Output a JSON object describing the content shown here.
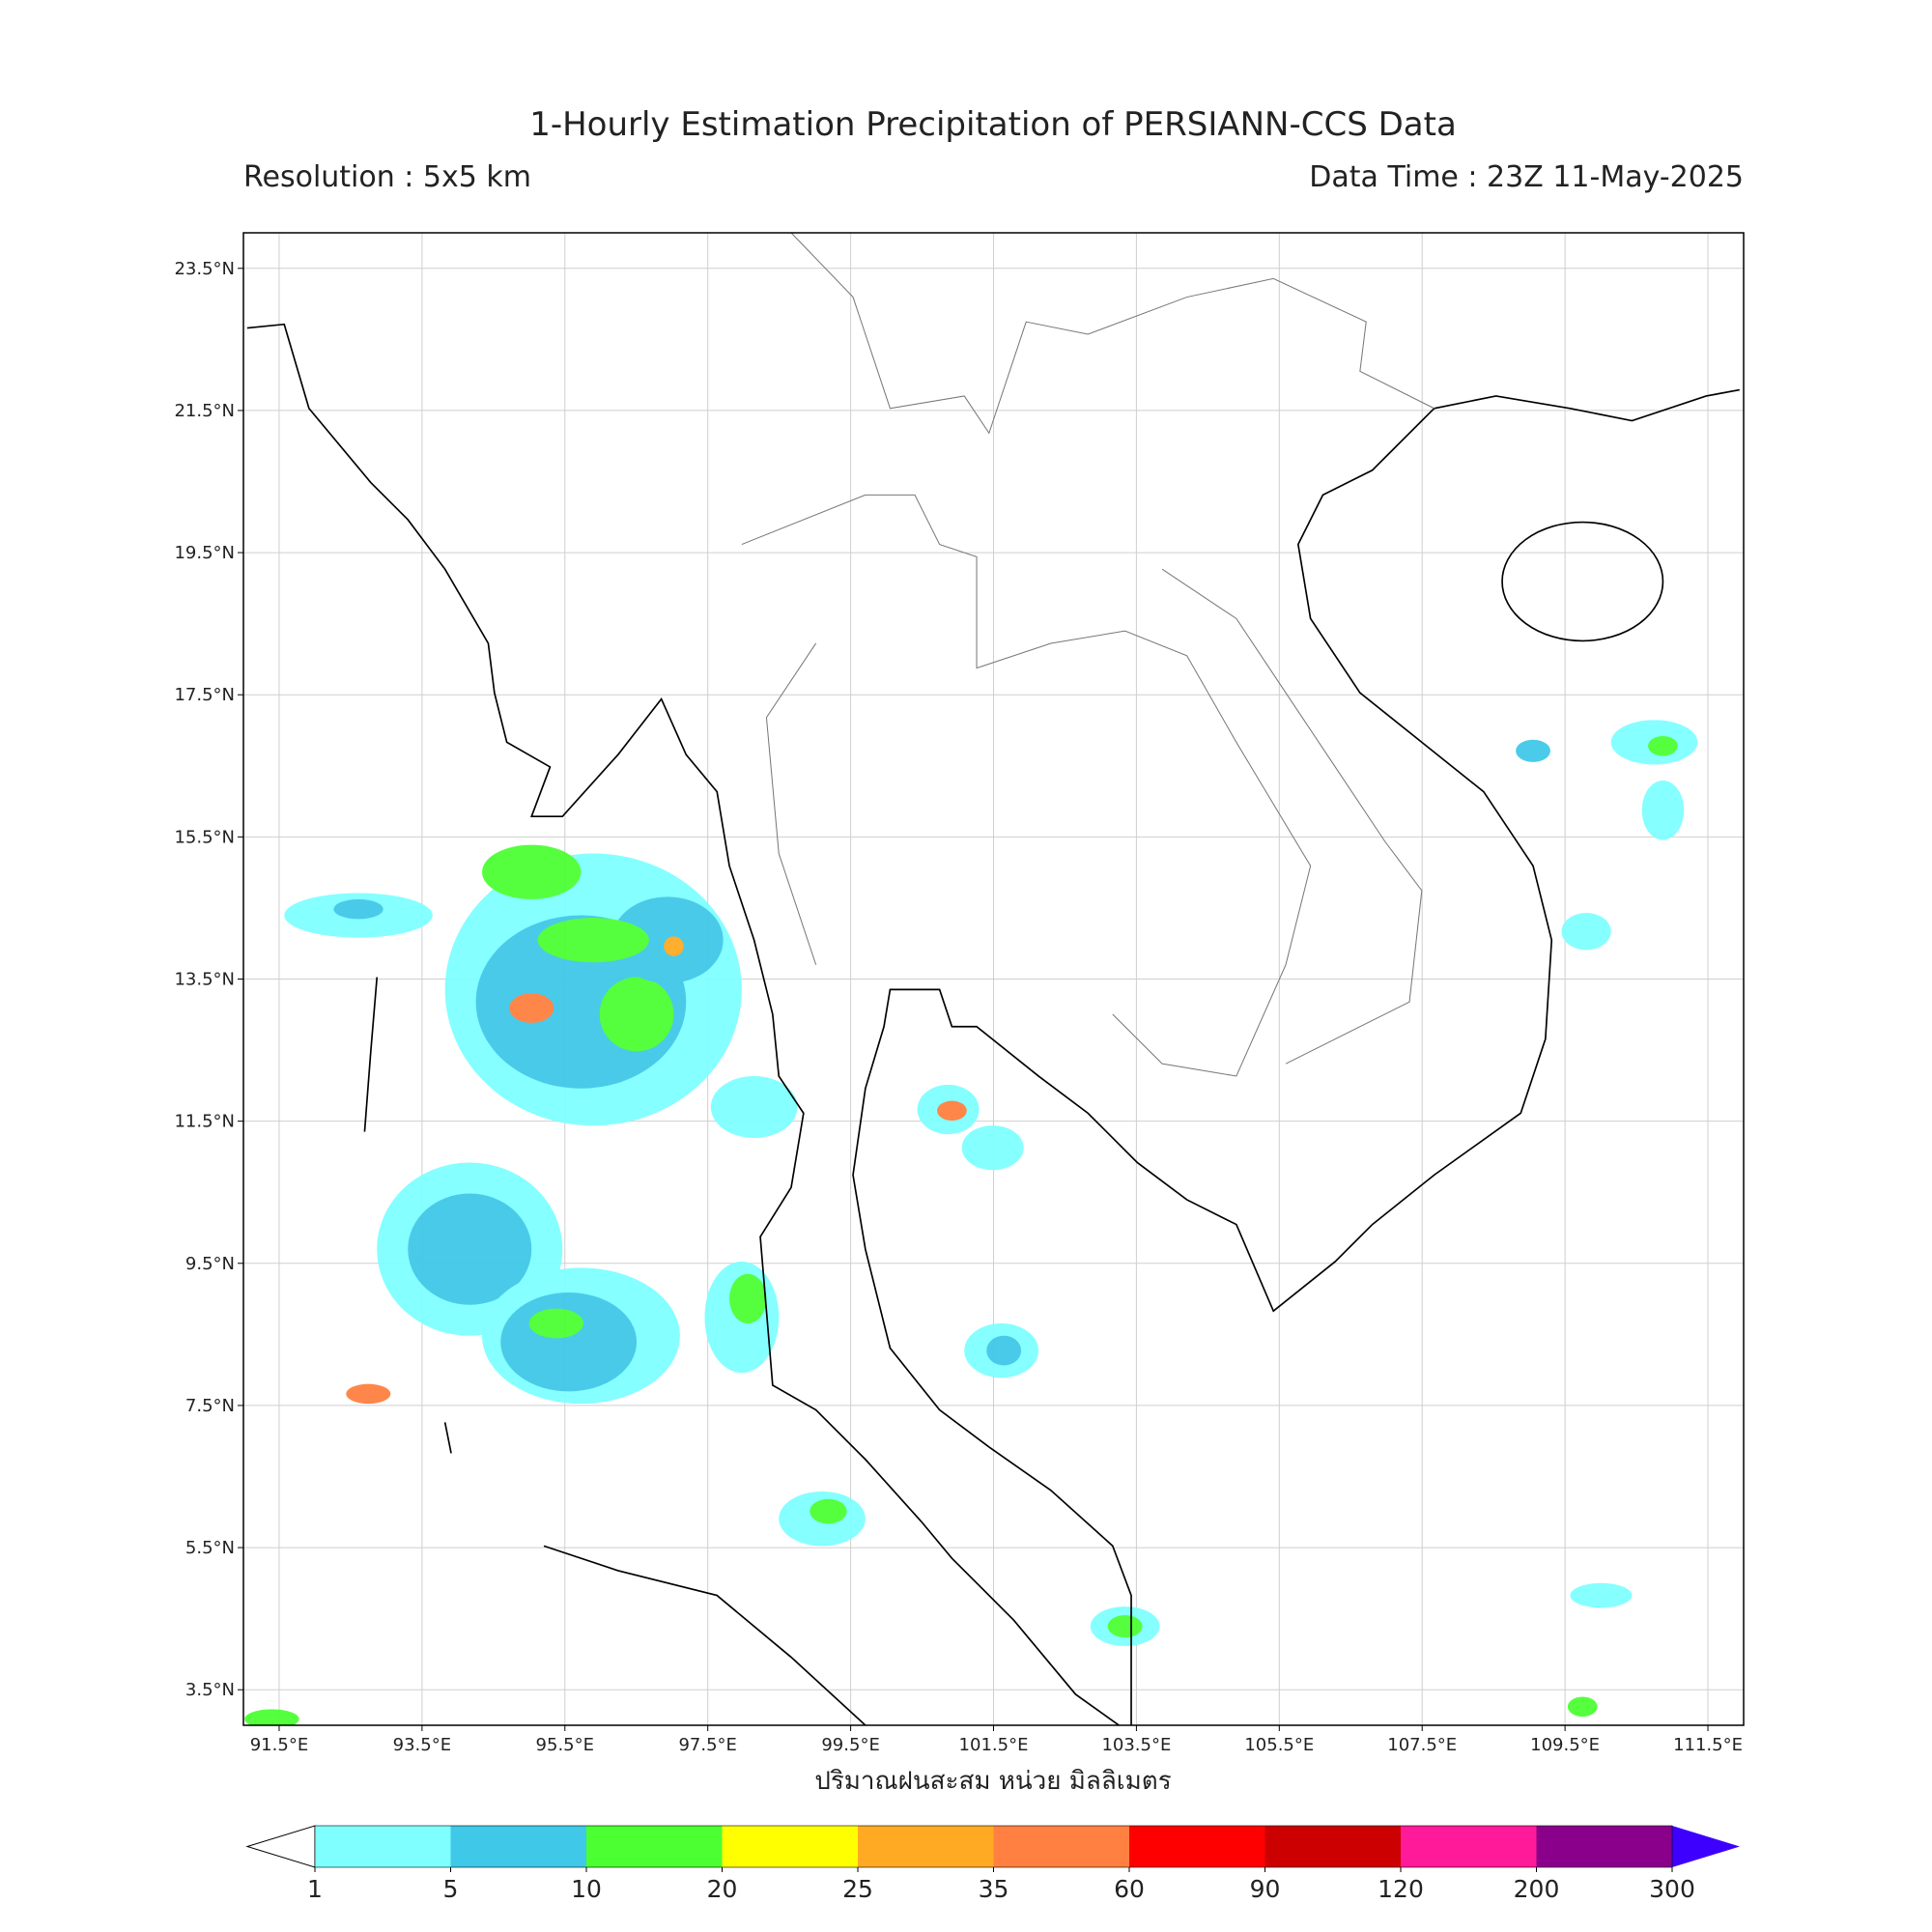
{
  "map": {
    "title": "1-Hourly Estimation Precipitation of PERSIANN-CCS Data",
    "subtitle_left": "Resolution : 5x5 km",
    "subtitle_right": "Data Time : 23Z 11-May-2025",
    "xlabel": "ปริมาณฝนสะสม หน่วย มิลลิเมตร",
    "lonlim": [
      91,
      112
    ],
    "latlim": [
      3,
      24
    ],
    "grid": true,
    "lonticks": [
      {
        "value": 91.5,
        "label": "91.5°E"
      },
      {
        "value": 93.5,
        "label": "93.5°E"
      },
      {
        "value": 95.5,
        "label": "95.5°E"
      },
      {
        "value": 97.5,
        "label": "97.5°E"
      },
      {
        "value": 99.5,
        "label": "99.5°E"
      },
      {
        "value": 101.5,
        "label": "101.5°E"
      },
      {
        "value": 103.5,
        "label": "103.5°E"
      },
      {
        "value": 105.5,
        "label": "105.5°E"
      },
      {
        "value": 107.5,
        "label": "107.5°E"
      },
      {
        "value": 109.5,
        "label": "109.5°E"
      },
      {
        "value": 111.5,
        "label": "111.5°E"
      }
    ],
    "latticks": [
      {
        "value": 3.5,
        "label": "3.5°N"
      },
      {
        "value": 5.5,
        "label": "5.5°N"
      },
      {
        "value": 7.5,
        "label": "7.5°N"
      },
      {
        "value": 9.5,
        "label": "9.5°N"
      },
      {
        "value": 11.5,
        "label": "11.5°N"
      },
      {
        "value": 13.5,
        "label": "13.5°N"
      },
      {
        "value": 15.5,
        "label": "15.5°N"
      },
      {
        "value": 17.5,
        "label": "17.5°N"
      },
      {
        "value": 19.5,
        "label": "19.5°N"
      },
      {
        "value": 21.5,
        "label": "21.5°N"
      },
      {
        "value": 23.5,
        "label": "23.5°N"
      }
    ],
    "colorbar": {
      "levels": [
        1,
        5,
        10,
        20,
        25,
        35,
        60,
        90,
        120,
        200,
        300
      ],
      "colors": [
        "#7fffff",
        "#40c8e8",
        "#4cff33",
        "#ffff00",
        "#ffaa22",
        "#ff8040",
        "#ff0000",
        "#cc0000",
        "#ff1a99",
        "#8b008b"
      ],
      "over_color": "#3d00ff"
    }
  }
}
